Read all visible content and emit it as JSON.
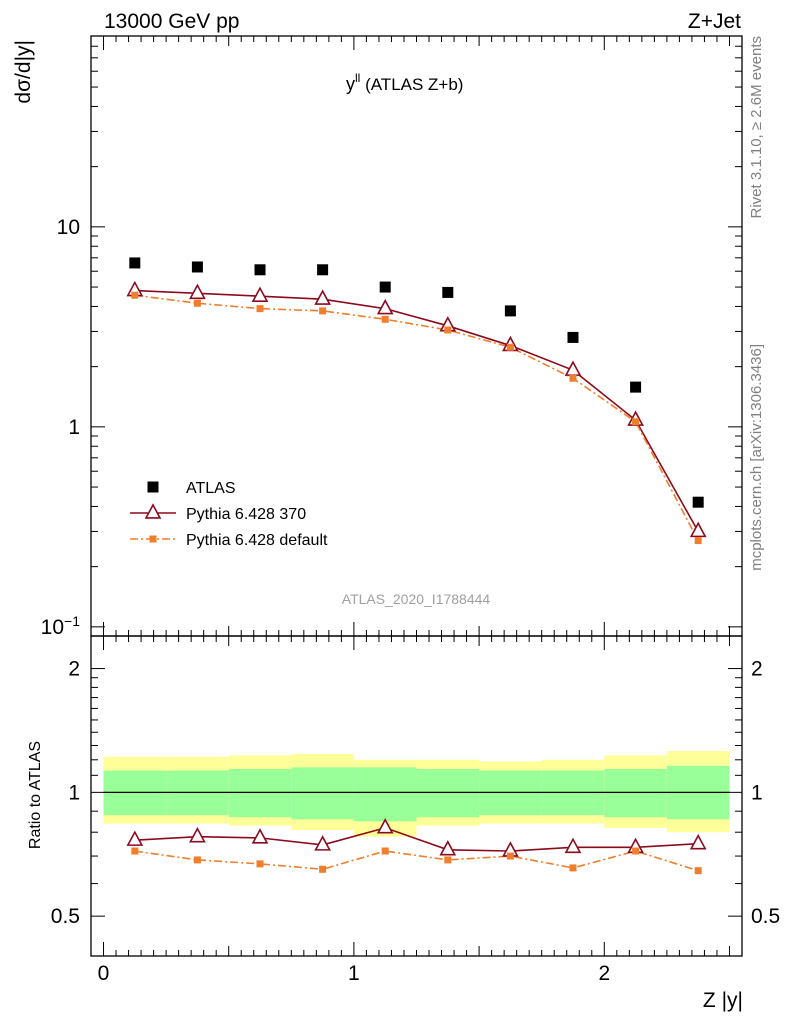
{
  "header": {
    "energy_label": "13000 GeV pp",
    "process_label": "Z+Jet"
  },
  "side_labels": {
    "rivet": "Rivet 3.1.10, ≥ 2.6M events",
    "mcplots": "mcplots.cern.ch [arXiv:1306.3436]"
  },
  "colors": {
    "atlas": "#000000",
    "pythia370": "#8b0a1e",
    "pythia_default": "#f07e2c",
    "band_inner": "#99ff99",
    "band_outer": "#ffff99"
  },
  "chart_data": [
    {
      "type": "line",
      "panel": "main",
      "title_base": "y",
      "title_sup": "ll",
      "title_rest": " (ATLAS Z+b)",
      "ylabel": "dσ/d|y|",
      "xlim": [
        -0.05,
        2.55
      ],
      "ylim": [
        0.09,
        90
      ],
      "yscale": "log",
      "ytick_labels": [
        {
          "value": 10,
          "label": "10"
        },
        {
          "value": 1,
          "label": "1"
        },
        {
          "value": 0.1,
          "label": "10",
          "sup": "−1"
        }
      ],
      "watermark": "ATLAS_2020_I1788444",
      "legend_position": "lower-left",
      "x": [
        0.125,
        0.375,
        0.625,
        0.875,
        1.125,
        1.375,
        1.625,
        1.875,
        2.125,
        2.375
      ],
      "series": [
        {
          "name": "ATLAS",
          "marker": "square",
          "values": [
            6.6,
            6.3,
            6.1,
            6.1,
            5.0,
            4.7,
            3.8,
            2.8,
            1.58,
            0.42
          ]
        },
        {
          "name": "Pythia 6.428 370",
          "marker": "open-triangle",
          "line": "solid",
          "values": [
            4.8,
            4.65,
            4.5,
            4.35,
            3.9,
            3.2,
            2.55,
            1.92,
            1.08,
            0.3
          ]
        },
        {
          "name": "Pythia 6.428 default",
          "marker": "small-square",
          "line": "dash-dot",
          "values": [
            4.55,
            4.15,
            3.9,
            3.8,
            3.45,
            3.05,
            2.5,
            1.75,
            1.06,
            0.27
          ]
        }
      ]
    },
    {
      "type": "line",
      "panel": "ratio",
      "ylabel": "Ratio to ATLAS",
      "xlabel": "Z |y|",
      "xlim": [
        -0.05,
        2.55
      ],
      "ylim": [
        0.4,
        2.4
      ],
      "yscale": "log",
      "ytick_labels": [
        {
          "value": 2,
          "label": "2"
        },
        {
          "value": 1,
          "label": "1"
        },
        {
          "value": 0.5,
          "label": "0.5"
        }
      ],
      "xtick_labels": [
        {
          "value": 0,
          "label": "0"
        },
        {
          "value": 1,
          "label": "1"
        },
        {
          "value": 2,
          "label": "2"
        }
      ],
      "x": [
        0.125,
        0.375,
        0.625,
        0.875,
        1.125,
        1.375,
        1.625,
        1.875,
        2.125,
        2.375
      ],
      "bin_edges": [
        0,
        0.25,
        0.5,
        0.75,
        1.0,
        1.25,
        1.5,
        1.75,
        2.0,
        2.25,
        2.5
      ],
      "band_inner": {
        "low": [
          0.88,
          0.88,
          0.87,
          0.86,
          0.85,
          0.87,
          0.88,
          0.88,
          0.87,
          0.86
        ],
        "high": [
          1.13,
          1.13,
          1.14,
          1.15,
          1.15,
          1.14,
          1.13,
          1.13,
          1.14,
          1.16
        ]
      },
      "band_outer": {
        "low": [
          0.84,
          0.84,
          0.83,
          0.81,
          0.78,
          0.83,
          0.84,
          0.84,
          0.82,
          0.8
        ],
        "high": [
          1.22,
          1.22,
          1.23,
          1.24,
          1.2,
          1.2,
          1.19,
          1.2,
          1.23,
          1.26
        ]
      },
      "series": [
        {
          "name": "Pythia 6.428 370",
          "marker": "open-triangle",
          "line": "solid",
          "values": [
            0.765,
            0.78,
            0.775,
            0.745,
            0.82,
            0.725,
            0.72,
            0.735,
            0.735,
            0.75
          ]
        },
        {
          "name": "Pythia 6.428 default",
          "marker": "small-square",
          "line": "dash-dot",
          "values": [
            0.72,
            0.685,
            0.67,
            0.65,
            0.72,
            0.685,
            0.7,
            0.655,
            0.72,
            0.645
          ]
        }
      ]
    }
  ]
}
